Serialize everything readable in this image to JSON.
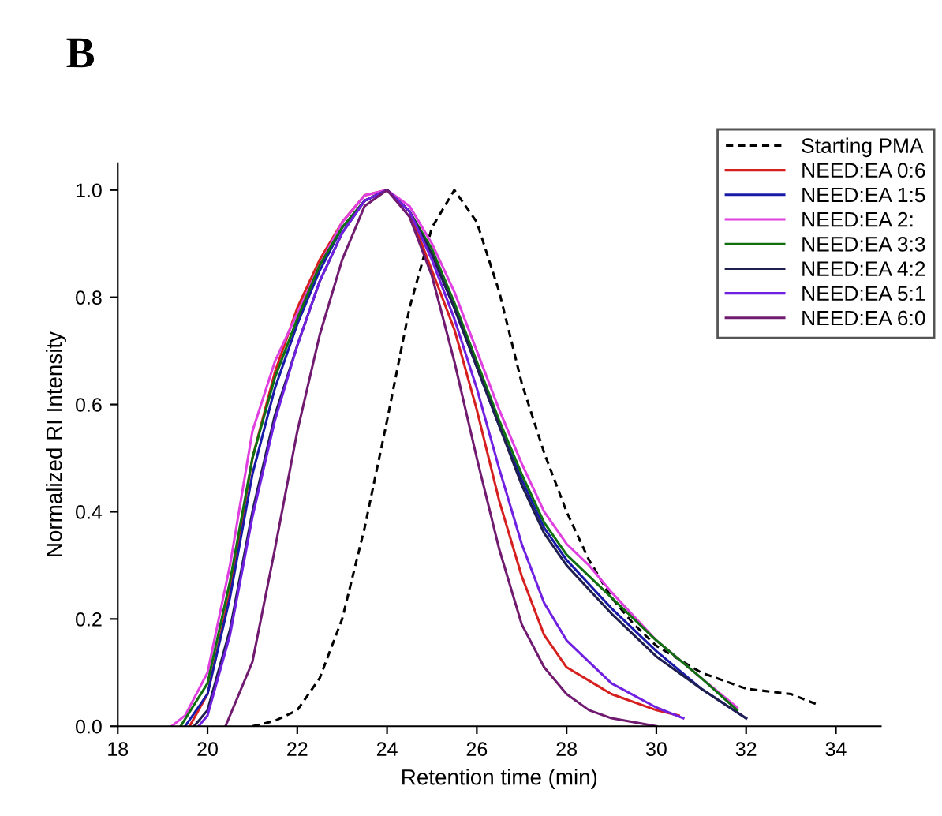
{
  "chart_data": {
    "type": "line",
    "title": "B",
    "xlabel": "Retention time (min)",
    "ylabel": "Normalized RI Intensity",
    "xlim": [
      18,
      35
    ],
    "ylim": [
      0,
      1.05
    ],
    "xticks": [
      18,
      20,
      22,
      24,
      26,
      28,
      30,
      32,
      34
    ],
    "yticks": [
      {
        "value": 0,
        "label": "0.0"
      },
      {
        "value": 0.2,
        "label": "0.2"
      },
      {
        "value": 0.4,
        "label": "0.4"
      },
      {
        "value": 0.6,
        "label": "0.6"
      },
      {
        "value": 0.8,
        "label": "0.8"
      },
      {
        "value": 1,
        "label": "1.0"
      }
    ],
    "grid": false,
    "legend": "top right",
    "marker": "none",
    "series": [
      {
        "name": "Starting PMA",
        "color": "#000000",
        "line_style": "dashed",
        "x": [
          21,
          21.5,
          22,
          22.5,
          23,
          23.5,
          24,
          24.5,
          25,
          25.5,
          26,
          26.5,
          27,
          27.5,
          28,
          28.5,
          29,
          29.5,
          30,
          31,
          32,
          33,
          33.6
        ],
        "values": [
          0,
          0.01,
          0.03,
          0.09,
          0.2,
          0.37,
          0.57,
          0.78,
          0.93,
          1.0,
          0.94,
          0.81,
          0.64,
          0.51,
          0.4,
          0.31,
          0.24,
          0.19,
          0.15,
          0.1,
          0.07,
          0.06,
          0.04
        ]
      },
      {
        "name": "NEED:EA 0:6",
        "color": "#d62020",
        "line_style": "solid",
        "x": [
          19.6,
          20,
          20.5,
          21,
          21.5,
          22,
          22.5,
          23,
          23.5,
          24,
          24.5,
          25,
          25.5,
          26,
          26.5,
          27,
          27.5,
          28,
          29,
          30,
          30.5
        ],
        "values": [
          0,
          0.06,
          0.25,
          0.5,
          0.66,
          0.78,
          0.87,
          0.94,
          0.99,
          1.0,
          0.96,
          0.85,
          0.74,
          0.59,
          0.42,
          0.28,
          0.17,
          0.11,
          0.06,
          0.03,
          0.02
        ]
      },
      {
        "name": "NEED:EA 1:5",
        "color": "#1a1aa8",
        "line_style": "solid",
        "x": [
          19.5,
          20,
          20.5,
          21,
          21.5,
          22,
          22.5,
          23,
          23.5,
          24,
          24.5,
          25,
          25.5,
          26,
          26.5,
          27,
          27.5,
          28,
          29,
          30,
          31,
          32
        ],
        "values": [
          0,
          0.06,
          0.24,
          0.47,
          0.63,
          0.75,
          0.85,
          0.93,
          0.98,
          1.0,
          0.96,
          0.88,
          0.78,
          0.67,
          0.56,
          0.46,
          0.37,
          0.31,
          0.22,
          0.14,
          0.07,
          0.015
        ]
      },
      {
        "name": "NEED:EA 2:",
        "color": "#e040e0",
        "line_style": "solid",
        "x": [
          19.2,
          19.5,
          20,
          20.5,
          21,
          21.5,
          22,
          22.5,
          23,
          23.5,
          24,
          24.5,
          25,
          25.5,
          26,
          26.5,
          27,
          27.5,
          28,
          28.5,
          29,
          30,
          31,
          31.8
        ],
        "values": [
          0,
          0.02,
          0.1,
          0.3,
          0.55,
          0.68,
          0.77,
          0.86,
          0.94,
          0.99,
          1.0,
          0.97,
          0.9,
          0.81,
          0.7,
          0.59,
          0.49,
          0.4,
          0.34,
          0.3,
          0.25,
          0.16,
          0.09,
          0.035
        ]
      },
      {
        "name": "NEED:EA 3:3",
        "color": "#107010",
        "line_style": "solid",
        "x": [
          19.4,
          20,
          20.5,
          21,
          21.5,
          22,
          22.5,
          23,
          23.5,
          24,
          24.5,
          25,
          25.5,
          26,
          26.5,
          27,
          27.5,
          28,
          29,
          30,
          31,
          31.8
        ],
        "values": [
          0,
          0.08,
          0.27,
          0.5,
          0.65,
          0.76,
          0.86,
          0.93,
          0.98,
          1.0,
          0.96,
          0.89,
          0.79,
          0.68,
          0.57,
          0.47,
          0.38,
          0.32,
          0.24,
          0.16,
          0.09,
          0.03
        ]
      },
      {
        "name": "NEED:EA 4:2",
        "color": "#202050",
        "line_style": "solid",
        "x": [
          19.7,
          20,
          20.5,
          21,
          21.5,
          22,
          22.5,
          23,
          23.5,
          24,
          24.5,
          25,
          25.5,
          26,
          26.5,
          27,
          27.5,
          28,
          29,
          30,
          31,
          32
        ],
        "values": [
          0,
          0.03,
          0.18,
          0.4,
          0.58,
          0.71,
          0.83,
          0.92,
          0.98,
          1.0,
          0.96,
          0.88,
          0.78,
          0.67,
          0.56,
          0.45,
          0.36,
          0.3,
          0.21,
          0.13,
          0.07,
          0.015
        ]
      },
      {
        "name": "NEED:EA 5:1",
        "color": "#7020e0",
        "line_style": "solid",
        "x": [
          19.8,
          20,
          20.5,
          21,
          21.5,
          22,
          22.5,
          23,
          23.5,
          24,
          24.5,
          25,
          25.5,
          26,
          26.5,
          27,
          27.5,
          28,
          29,
          30,
          30.6
        ],
        "values": [
          0,
          0.02,
          0.17,
          0.39,
          0.57,
          0.71,
          0.83,
          0.92,
          0.98,
          1.0,
          0.96,
          0.87,
          0.76,
          0.63,
          0.48,
          0.34,
          0.23,
          0.16,
          0.08,
          0.035,
          0.015
        ]
      },
      {
        "name": "NEED:EA 6:0",
        "color": "#701a70",
        "line_style": "solid",
        "x": [
          20.4,
          21,
          21.5,
          22,
          22.5,
          23,
          23.5,
          24,
          24.5,
          25,
          25.5,
          26,
          26.5,
          27,
          27.5,
          28,
          28.5,
          29,
          30
        ],
        "values": [
          0,
          0.12,
          0.33,
          0.55,
          0.73,
          0.87,
          0.97,
          1.0,
          0.95,
          0.84,
          0.68,
          0.5,
          0.33,
          0.19,
          0.11,
          0.06,
          0.03,
          0.015,
          0
        ]
      }
    ]
  }
}
